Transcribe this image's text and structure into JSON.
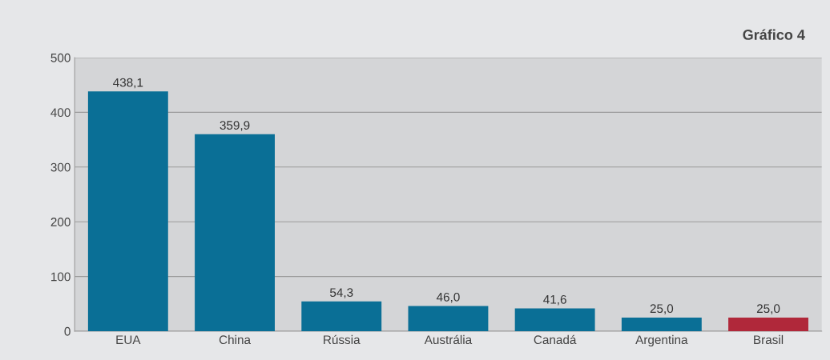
{
  "chart_data": {
    "type": "bar",
    "title": "Gráfico 4",
    "categories": [
      "EUA",
      "China",
      "Rússia",
      "Austrália",
      "Canadá",
      "Argentina",
      "Brasil"
    ],
    "values": [
      438.1,
      359.9,
      54.3,
      46.0,
      41.6,
      25.0,
      25.0
    ],
    "colors": [
      "#0a6f96",
      "#0a6f96",
      "#0a6f96",
      "#0a6f96",
      "#0a6f96",
      "#0a6f96",
      "#b0283a"
    ],
    "value_labels": [
      "438,1",
      "359,9",
      "54,3",
      "46,0",
      "41,6",
      "25,0",
      "25,0"
    ],
    "ylim": [
      0,
      500
    ],
    "yticks": [
      0,
      100,
      200,
      300,
      400,
      500
    ],
    "grid": "y"
  }
}
